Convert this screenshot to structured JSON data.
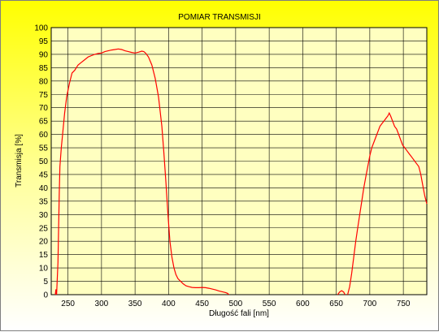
{
  "chart_data": {
    "type": "line",
    "title": "POMIAR TRANSMISJI",
    "xlabel": "Długość fali [nm]",
    "ylabel": "Transmisja [%]",
    "xlim": [
      225,
      785
    ],
    "ylim": [
      0,
      100
    ],
    "x_ticks": [
      250,
      300,
      350,
      400,
      450,
      500,
      550,
      600,
      650,
      700,
      750
    ],
    "y_ticks": [
      0,
      5,
      10,
      15,
      20,
      25,
      30,
      35,
      40,
      45,
      50,
      55,
      60,
      65,
      70,
      75,
      80,
      85,
      90,
      95,
      100
    ],
    "grid": true,
    "line_color": "#ff0000",
    "plot_background": "#ffffc0",
    "series": [
      {
        "values_segments": [
          [
            [
              231,
              0
            ],
            [
              232,
              2
            ],
            [
              233,
              0
            ],
            [
              235,
              12
            ],
            [
              236,
              25
            ],
            [
              237,
              38
            ],
            [
              238,
              48
            ],
            [
              240,
              55
            ],
            [
              242,
              60
            ],
            [
              245,
              68
            ],
            [
              248,
              74
            ],
            [
              252,
              79
            ],
            [
              256,
              83
            ],
            [
              260,
              84
            ],
            [
              265,
              86
            ],
            [
              270,
              87
            ],
            [
              275,
              88
            ],
            [
              280,
              89
            ],
            [
              285,
              89.5
            ],
            [
              290,
              90
            ],
            [
              295,
              90.3
            ],
            [
              300,
              90.5
            ],
            [
              305,
              91
            ],
            [
              310,
              91.3
            ],
            [
              315,
              91.6
            ],
            [
              320,
              91.8
            ],
            [
              325,
              92
            ],
            [
              330,
              91.8
            ],
            [
              335,
              91.3
            ],
            [
              340,
              91
            ],
            [
              345,
              90.7
            ],
            [
              350,
              90.5
            ],
            [
              355,
              90.8
            ],
            [
              360,
              91.2
            ],
            [
              363,
              91
            ],
            [
              366,
              90.4
            ],
            [
              370,
              89
            ],
            [
              375,
              86
            ],
            [
              380,
              81
            ],
            [
              385,
              74
            ],
            [
              390,
              63
            ],
            [
              393,
              53
            ],
            [
              396,
              42
            ],
            [
              399,
              30
            ],
            [
              402,
              20
            ],
            [
              405,
              14
            ],
            [
              408,
              10
            ],
            [
              411,
              7.5
            ],
            [
              414,
              6
            ],
            [
              418,
              5
            ],
            [
              422,
              4
            ],
            [
              426,
              3.3
            ],
            [
              430,
              3
            ],
            [
              435,
              2.7
            ],
            [
              440,
              2.6
            ],
            [
              445,
              2.6
            ],
            [
              450,
              2.7
            ],
            [
              455,
              2.6
            ],
            [
              460,
              2.4
            ],
            [
              465,
              2.1
            ],
            [
              470,
              1.8
            ],
            [
              475,
              1.4
            ],
            [
              480,
              1.1
            ],
            [
              485,
              0.8
            ],
            [
              488,
              0.5
            ],
            [
              490,
              0
            ]
          ],
          [
            [
              652,
              0
            ],
            [
              655,
              1
            ],
            [
              658,
              1.5
            ],
            [
              661,
              1
            ],
            [
              663,
              0
            ]
          ],
          [
            [
              667,
              0
            ],
            [
              670,
              3
            ],
            [
              673,
              8
            ],
            [
              676,
              14
            ],
            [
              679,
              20
            ],
            [
              682,
              25
            ],
            [
              685,
              30
            ],
            [
              688,
              35
            ],
            [
              691,
              40
            ],
            [
              694,
              44
            ],
            [
              697,
              48
            ],
            [
              700,
              52
            ],
            [
              703,
              55
            ],
            [
              706,
              57
            ],
            [
              709,
              59
            ],
            [
              712,
              61
            ],
            [
              715,
              63
            ],
            [
              718,
              64
            ],
            [
              721,
              65
            ],
            [
              724,
              66
            ],
            [
              727,
              67
            ],
            [
              729,
              68
            ],
            [
              731,
              67
            ],
            [
              734,
              65
            ],
            [
              737,
              63
            ],
            [
              740,
              62
            ],
            [
              743,
              60
            ],
            [
              746,
              58
            ],
            [
              749,
              56
            ],
            [
              752,
              55
            ],
            [
              755,
              54
            ],
            [
              758,
              53
            ],
            [
              761,
              52
            ],
            [
              764,
              51
            ],
            [
              767,
              50
            ],
            [
              770,
              49
            ],
            [
              773,
              48
            ],
            [
              776,
              45
            ],
            [
              779,
              41
            ],
            [
              782,
              37
            ],
            [
              785,
              34
            ]
          ]
        ]
      }
    ]
  }
}
